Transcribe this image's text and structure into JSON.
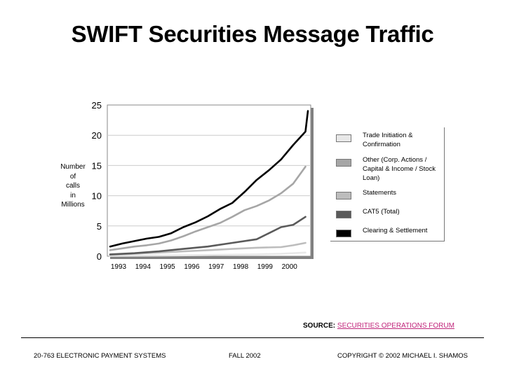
{
  "title": "SWIFT Securities Message Traffic",
  "source": {
    "prefix": "SOURCE:",
    "link": "SECURITIES OPERATIONS FORUM"
  },
  "footer": {
    "left": "20-763 ELECTRONIC PAYMENT SYSTEMS",
    "center": "FALL 2002",
    "right": "COPYRIGHT © 2002 MICHAEL I. SHAMOS"
  },
  "chart_data": {
    "type": "line",
    "ylabel": "Number of calls in Millions",
    "ylabel_lines": [
      "Number",
      "of",
      "calls",
      "in",
      "Millions"
    ],
    "xlabel": "",
    "ylim": [
      0,
      25
    ],
    "yticks": [
      "0",
      "5",
      "10",
      "15",
      "20",
      "25"
    ],
    "yticks_values": [
      0,
      5,
      10,
      15,
      20,
      25
    ],
    "xlim": [
      1993,
      2001.1
    ],
    "xticks": [
      "1993",
      "1994",
      "1995",
      "1996",
      "1997",
      "1998",
      "1999",
      "2000"
    ],
    "xticks_values": [
      1993,
      1994,
      1995,
      1996,
      1997,
      1998,
      1999,
      2000
    ],
    "grid": "horizontal",
    "legend_position": "right",
    "series": [
      {
        "name": "Trade Initiation & Confirmation",
        "color": "#e8e8e8",
        "x": [
          1993,
          1995,
          1997,
          1998,
          1999,
          2000,
          2001
        ],
        "y": [
          0.05,
          0.1,
          0.2,
          0.25,
          0.3,
          0.4,
          0.6
        ]
      },
      {
        "name": "Other (Corp. Actions / Capital & Income / Stock Loan)",
        "color": "#a6a6a6",
        "x": [
          1993,
          1993.5,
          1994,
          1994.5,
          1995,
          1995.5,
          1996,
          1996.5,
          1997,
          1997.5,
          1998,
          1998.5,
          1999,
          1999.5,
          2000,
          2000.5,
          2001
        ],
        "y": [
          1.0,
          1.3,
          1.6,
          1.8,
          2.1,
          2.6,
          3.3,
          4.1,
          4.8,
          5.5,
          6.5,
          7.6,
          8.3,
          9.2,
          10.4,
          12.0,
          14.8
        ]
      },
      {
        "name": "Statements",
        "color": "#bdbdbd",
        "x": [
          1993,
          1994,
          1995,
          1996,
          1997,
          1998,
          1999,
          2000,
          2000.5,
          2001
        ],
        "y": [
          0.2,
          0.4,
          0.6,
          0.8,
          1.0,
          1.2,
          1.4,
          1.5,
          1.8,
          2.2
        ]
      },
      {
        "name": "CAT5 (Total)",
        "color": "#5a5a5a",
        "x": [
          1993,
          1994,
          1995,
          1996,
          1997,
          1998,
          1999,
          1999.5,
          2000,
          2000.5,
          2001
        ],
        "y": [
          0.3,
          0.5,
          0.8,
          1.2,
          1.6,
          2.2,
          2.8,
          3.8,
          4.8,
          5.2,
          6.5
        ]
      },
      {
        "name": "Clearing & Settlement",
        "color": "#000000",
        "x": [
          1993,
          1993.5,
          1994,
          1994.5,
          1995,
          1995.5,
          1996,
          1996.5,
          1997,
          1997.5,
          1998,
          1998.5,
          1999,
          1999.5,
          2000,
          2000.5,
          2001,
          2001.1
        ],
        "y": [
          1.6,
          2.1,
          2.5,
          2.9,
          3.2,
          3.8,
          4.8,
          5.6,
          6.6,
          7.8,
          8.8,
          10.6,
          12.6,
          14.2,
          16.0,
          18.4,
          20.6,
          24.0
        ]
      }
    ]
  }
}
